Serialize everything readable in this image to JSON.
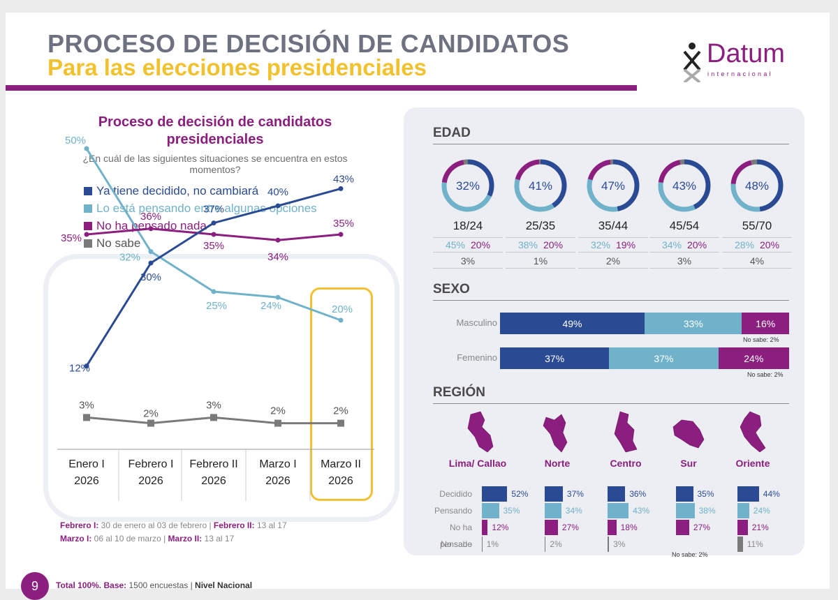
{
  "header": {
    "title": "PROCESO DE DECISIÓN DE CANDIDATOS",
    "subtitle": "Para las elecciones presidenciales",
    "logo_text": "Datum",
    "logo_sub": "internacional"
  },
  "colors": {
    "decidido": "#2a4a94",
    "pensando": "#6fb2c9",
    "nada": "#8b1e7f",
    "nosabe": "#7a7a7a",
    "accent": "#f2c12e"
  },
  "left": {
    "section_title": "Proceso de decisión de candidatos presidenciales",
    "question": "¿En cuál de las siguientes situaciones se encuentra en estos momentos?",
    "legend": [
      "Ya tiene decidido, no cambiará",
      "Lo está pensando entre algunas opciones",
      "No ha pensado nada",
      "No sabe"
    ]
  },
  "chart_data": [
    {
      "type": "line",
      "title": "Proceso de decisión de candidatos presidenciales",
      "categories": [
        "Enero I 2026",
        "Febrero I 2026",
        "Febrero II 2026",
        "Marzo I 2026",
        "Marzo II 2026"
      ],
      "series": [
        {
          "name": "Ya tiene decidido, no cambiará",
          "values": [
            12,
            30,
            37,
            40,
            43
          ]
        },
        {
          "name": "Lo está pensando entre algunas opciones",
          "values": [
            50,
            32,
            25,
            24,
            20
          ]
        },
        {
          "name": "No ha pensado nada",
          "values": [
            35,
            36,
            35,
            34,
            35
          ]
        },
        {
          "name": "No sabe",
          "values": [
            3,
            2,
            3,
            2,
            2
          ]
        }
      ],
      "ylim": [
        0,
        55
      ]
    },
    {
      "type": "donut",
      "title": "EDAD",
      "categories": [
        "18/24",
        "25/35",
        "35/44",
        "45/54",
        "55/70"
      ],
      "series": [
        {
          "name": "Decidido",
          "values": [
            32,
            41,
            47,
            43,
            48
          ]
        },
        {
          "name": "Pensando",
          "values": [
            45,
            38,
            32,
            34,
            28
          ]
        },
        {
          "name": "No ha pensado",
          "values": [
            20,
            20,
            19,
            20,
            20
          ]
        },
        {
          "name": "No sabe",
          "values": [
            3,
            1,
            2,
            3,
            4
          ]
        }
      ]
    },
    {
      "type": "bar",
      "title": "SEXO",
      "categories": [
        "Masculino",
        "Femenino"
      ],
      "series": [
        {
          "name": "Decidido",
          "values": [
            49,
            37
          ]
        },
        {
          "name": "Pensando",
          "values": [
            33,
            37
          ]
        },
        {
          "name": "No ha pensado",
          "values": [
            16,
            24
          ]
        },
        {
          "name": "No sabe",
          "values": [
            2,
            2
          ]
        }
      ]
    },
    {
      "type": "bar",
      "title": "REGIÓN",
      "categories": [
        "Lima/ Callao",
        "Norte",
        "Centro",
        "Sur",
        "Oriente"
      ],
      "series": [
        {
          "name": "Decidido",
          "values": [
            52,
            37,
            36,
            35,
            44
          ]
        },
        {
          "name": "Pensando",
          "values": [
            35,
            34,
            43,
            38,
            24
          ]
        },
        {
          "name": "No ha pensado",
          "values": [
            12,
            27,
            18,
            27,
            21
          ]
        },
        {
          "name": "No sabe",
          "values": [
            1,
            2,
            3,
            null,
            11
          ]
        }
      ]
    }
  ],
  "dates": {
    "l1a": "Febrero I:",
    "l1b": " 30 de enero al 03 de febrero  |  ",
    "l1c": "Febrero II:",
    "l1d": " 13 al 17",
    "l2a": "Marzo I:",
    "l2b": " 06 al 10 de marzo  |  ",
    "l2c": "Marzo II:",
    "l2d": " 13 al 17"
  },
  "panel": {
    "edad_title": "EDAD",
    "sexo_title": "SEXO",
    "region_title": "REGIÓN",
    "sexo_nosabe": "No sabe: 2%",
    "region_labels": [
      "Decidido",
      "Pensando",
      "No ha pensado",
      "No sabe"
    ],
    "sur_nosabe": "No sabe: 2%"
  },
  "footer": {
    "page": "9",
    "total": "Total 100%.",
    "base_label": "Base:",
    "base": " 1500 encuestas  |  ",
    "nivel": "Nivel Nacional"
  }
}
